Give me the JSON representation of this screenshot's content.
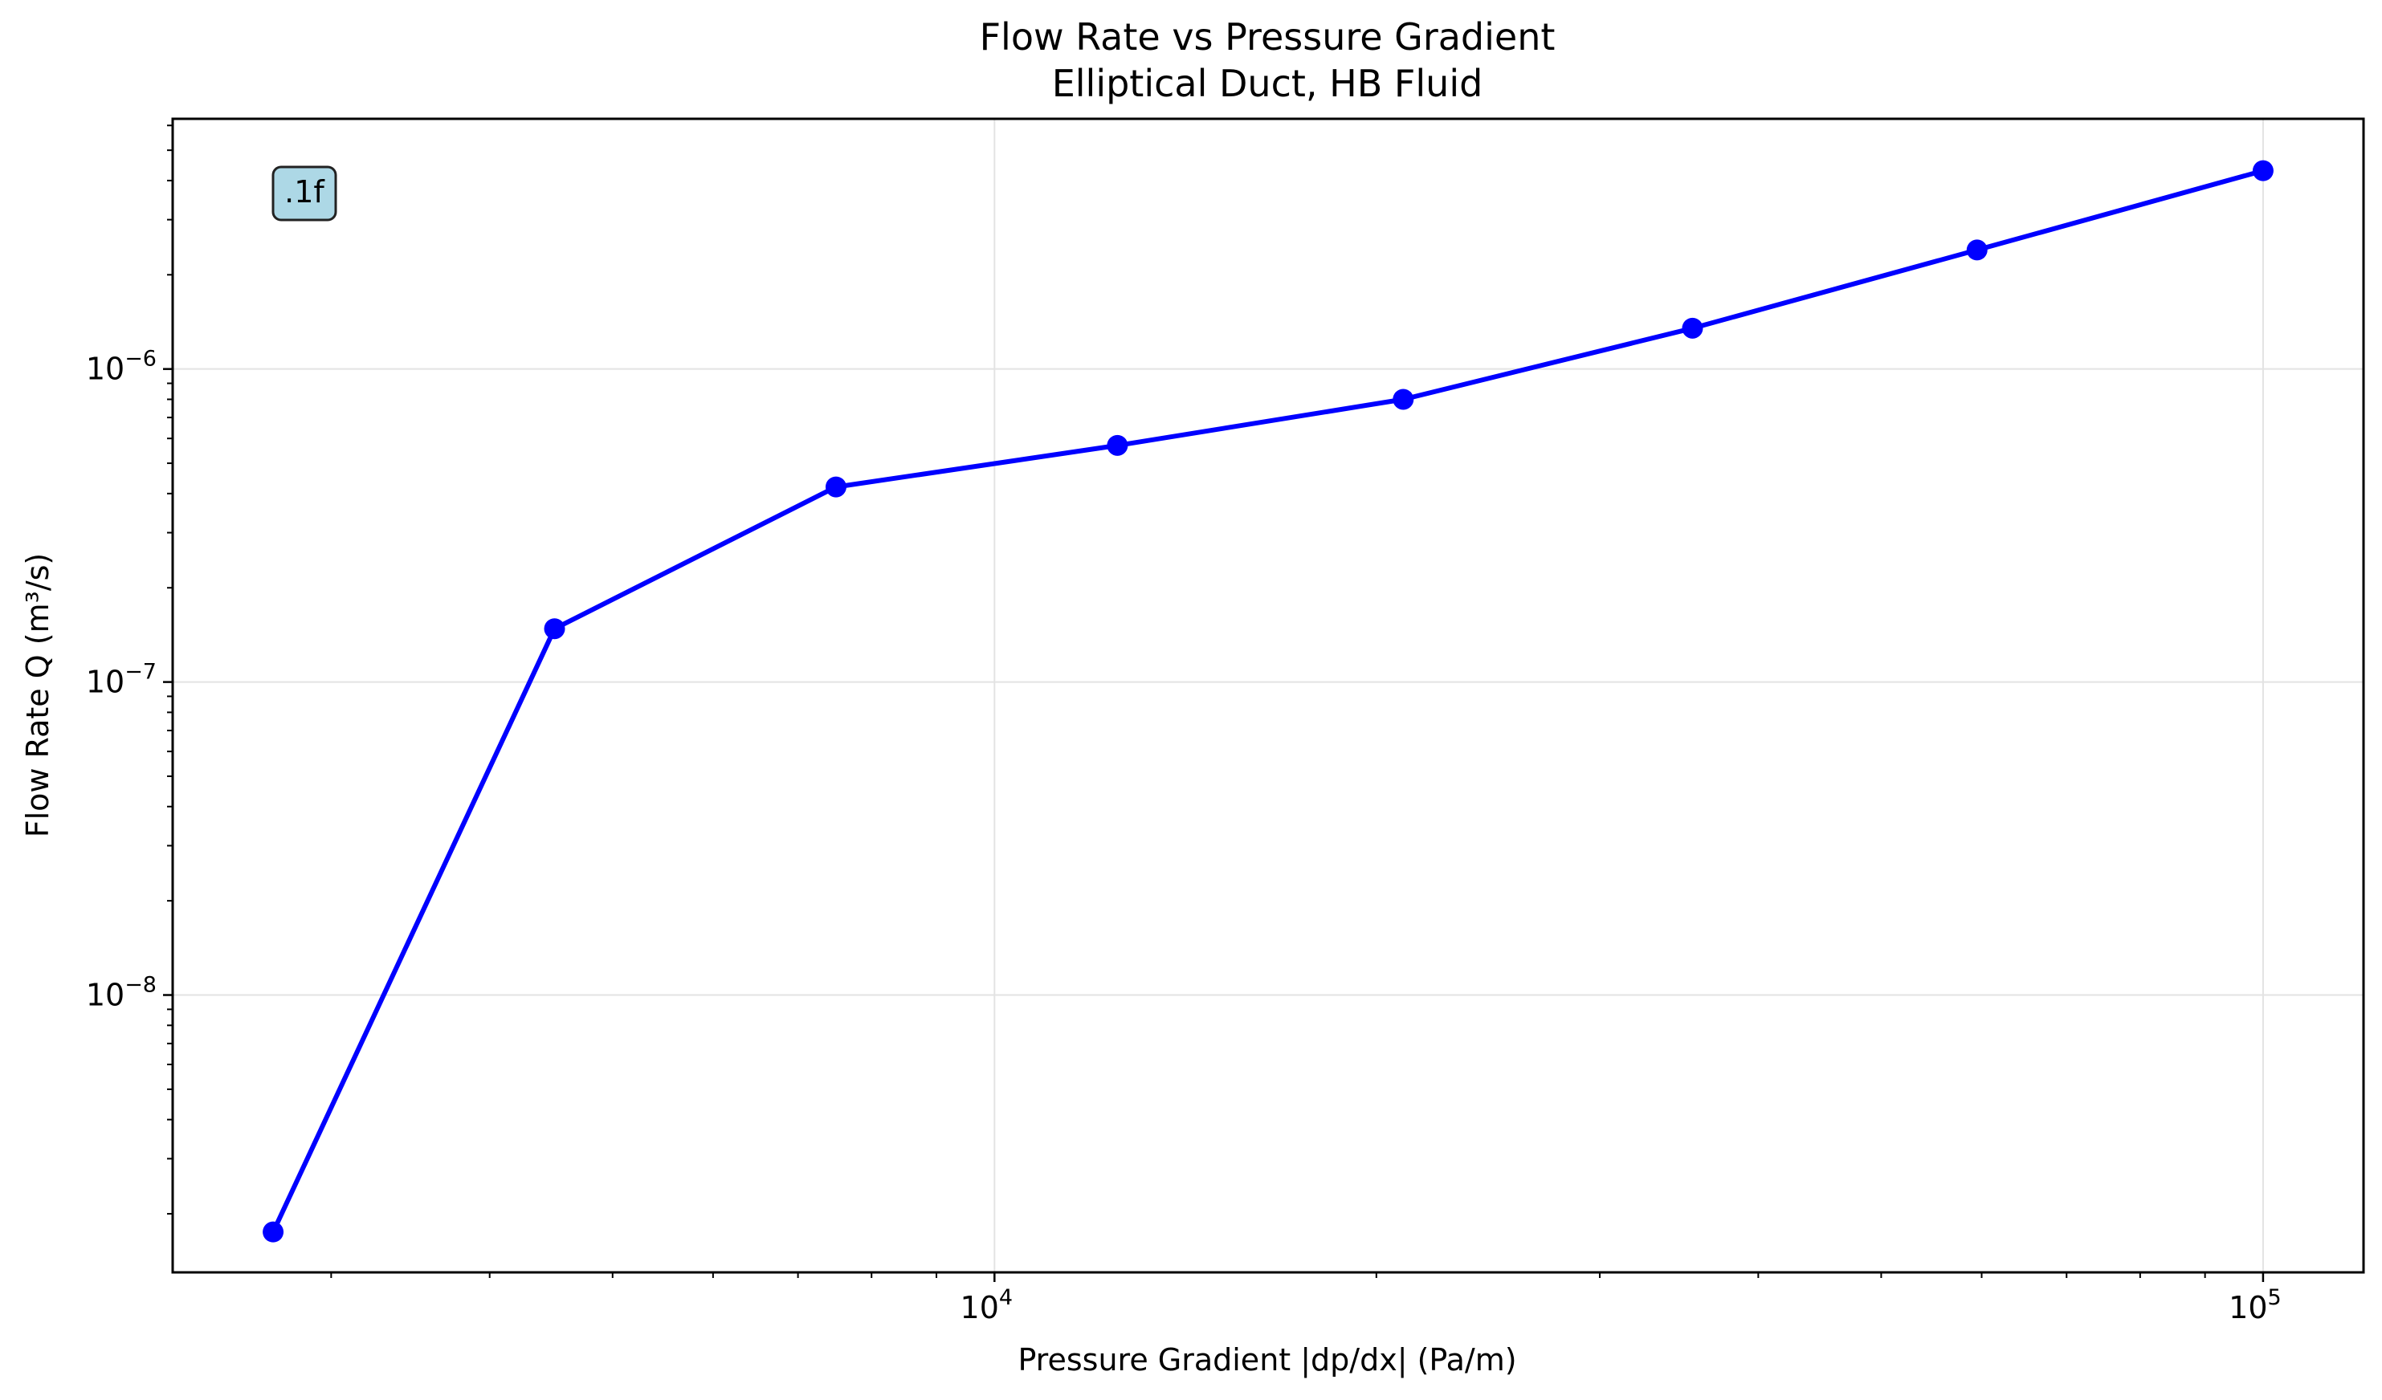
{
  "chart_data": {
    "type": "line",
    "title": "Flow Rate vs Pressure Gradient",
    "subtitle": "Elliptical Duct, HB Fluid",
    "xlabel": "Pressure Gradient |dp/dx| (Pa/m)",
    "ylabel": "Flow Rate Q (m³/s)",
    "xscale": "log",
    "yscale": "log",
    "xlim": [
      2250,
      120000
    ],
    "ylim": [
      1.3e-09,
      6.3e-06
    ],
    "grid": true,
    "x_ticks": [
      {
        "value": 10000,
        "base": "10",
        "exp": "4"
      },
      {
        "value": 100000,
        "base": "10",
        "exp": "5"
      }
    ],
    "y_ticks": [
      {
        "value": 1e-08,
        "base": "10",
        "exp": "−8"
      },
      {
        "value": 1e-07,
        "base": "10",
        "exp": "−7"
      },
      {
        "value": 1e-06,
        "base": "10",
        "exp": "−6"
      }
    ],
    "annotation": ".1f",
    "annotation_color": "#add8e6",
    "series": [
      {
        "color": "#0000ff",
        "marker": "circle",
        "x": [
          2700,
          4500,
          7500,
          12500,
          21000,
          35500,
          59500,
          100000
        ],
        "y": [
          1.75e-09,
          1.48e-07,
          4.2e-07,
          5.7e-07,
          8e-07,
          1.35e-06,
          2.4e-06,
          4.3e-06
        ]
      }
    ]
  }
}
